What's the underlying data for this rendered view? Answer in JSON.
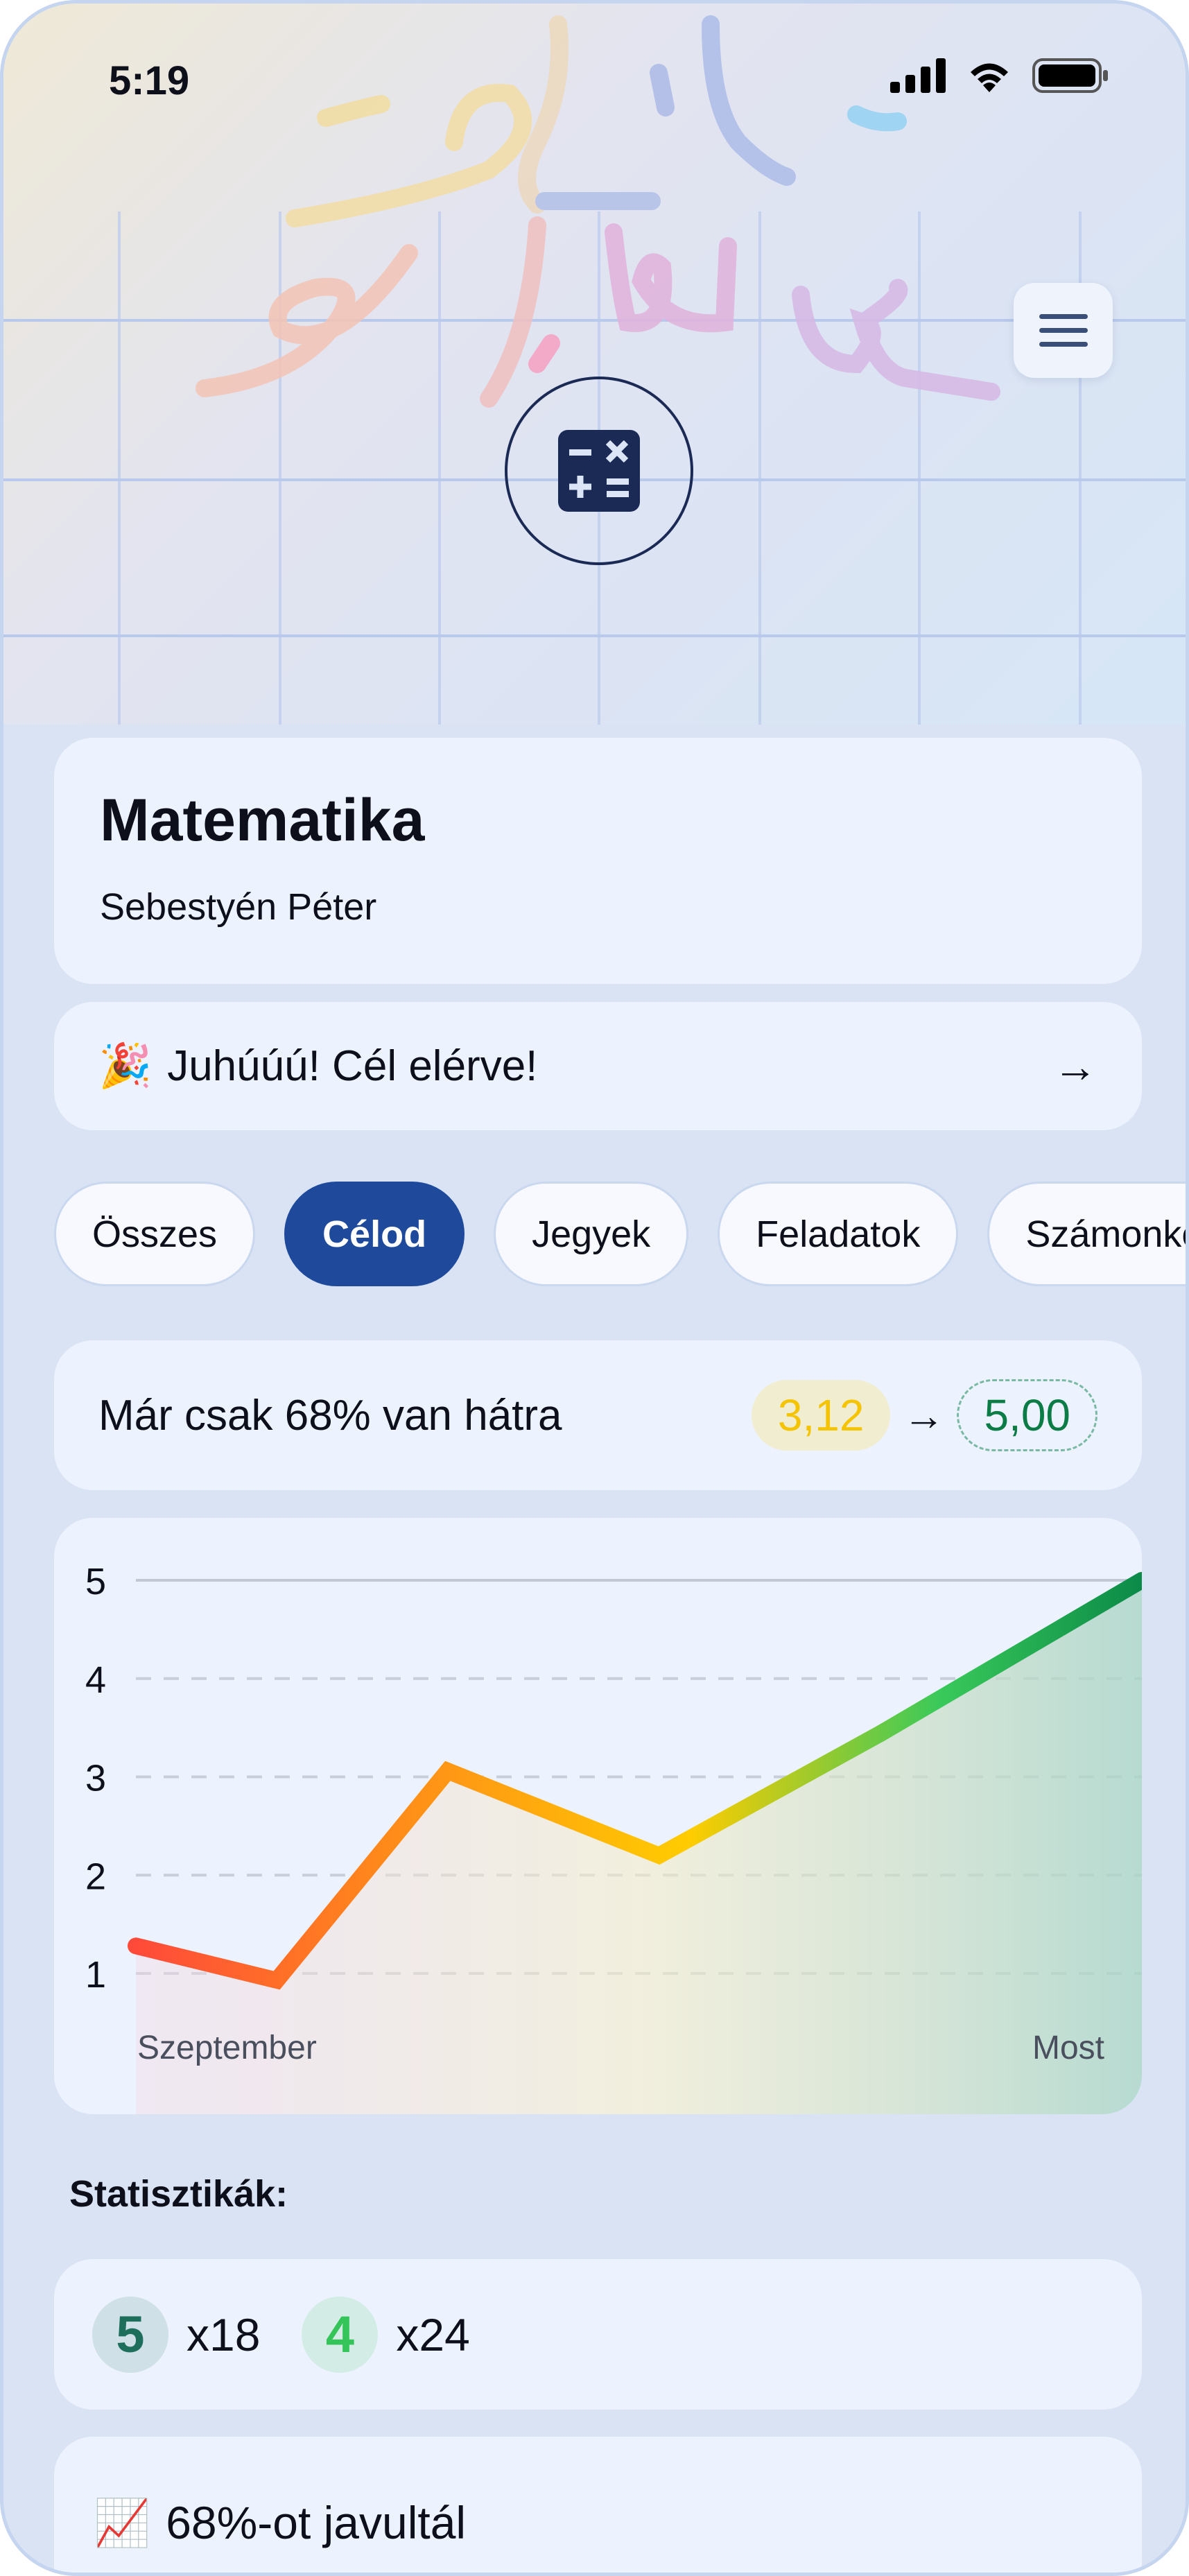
{
  "status_bar": {
    "time": "5:19"
  },
  "header": {
    "menu_icon": "hamburger-icon",
    "subject_icon": "calculator-icon"
  },
  "subject": {
    "title": "Matematika",
    "teacher": "Sebestyén Péter"
  },
  "banner": {
    "emoji": "🎉",
    "text": "Juhúúú! Cél elérve!",
    "arrow": "→"
  },
  "tabs": [
    {
      "label": "Összes",
      "active": false
    },
    {
      "label": "Célod",
      "active": true
    },
    {
      "label": "Jegyek",
      "active": false
    },
    {
      "label": "Feladatok",
      "active": false
    },
    {
      "label": "Számonkérések",
      "active": false
    }
  ],
  "goal": {
    "text": "Már csak 68% van hátra",
    "current": "3,12",
    "arrow": "→",
    "target": "5,00",
    "current_color": "#f5c400",
    "target_color": "#0b7c45"
  },
  "chart_data": {
    "type": "line",
    "yticks": [
      "1",
      "2",
      "3",
      "4",
      "5"
    ],
    "ylim": [
      0.5,
      5
    ],
    "x_labels": [
      "Szeptember",
      "Most"
    ],
    "values": [
      1.28,
      0.93,
      3.06,
      2.2,
      3.44,
      5.0
    ],
    "grid": "dashed horizontal",
    "colors": {
      "low": "#ff4a3a",
      "mid": "#ffcc00",
      "high": "#0b8a48"
    }
  },
  "stats": {
    "label": "Statisztikák:",
    "grades": [
      {
        "grade": "5",
        "count": "x18",
        "color": "#1e6e5c",
        "bg": "#cfe0e6"
      },
      {
        "grade": "4",
        "count": "x24",
        "color": "#35c45a",
        "bg": "#d3ece6"
      }
    ]
  },
  "improvement": {
    "emoji": "📈",
    "text": "68%-ot javultál"
  }
}
